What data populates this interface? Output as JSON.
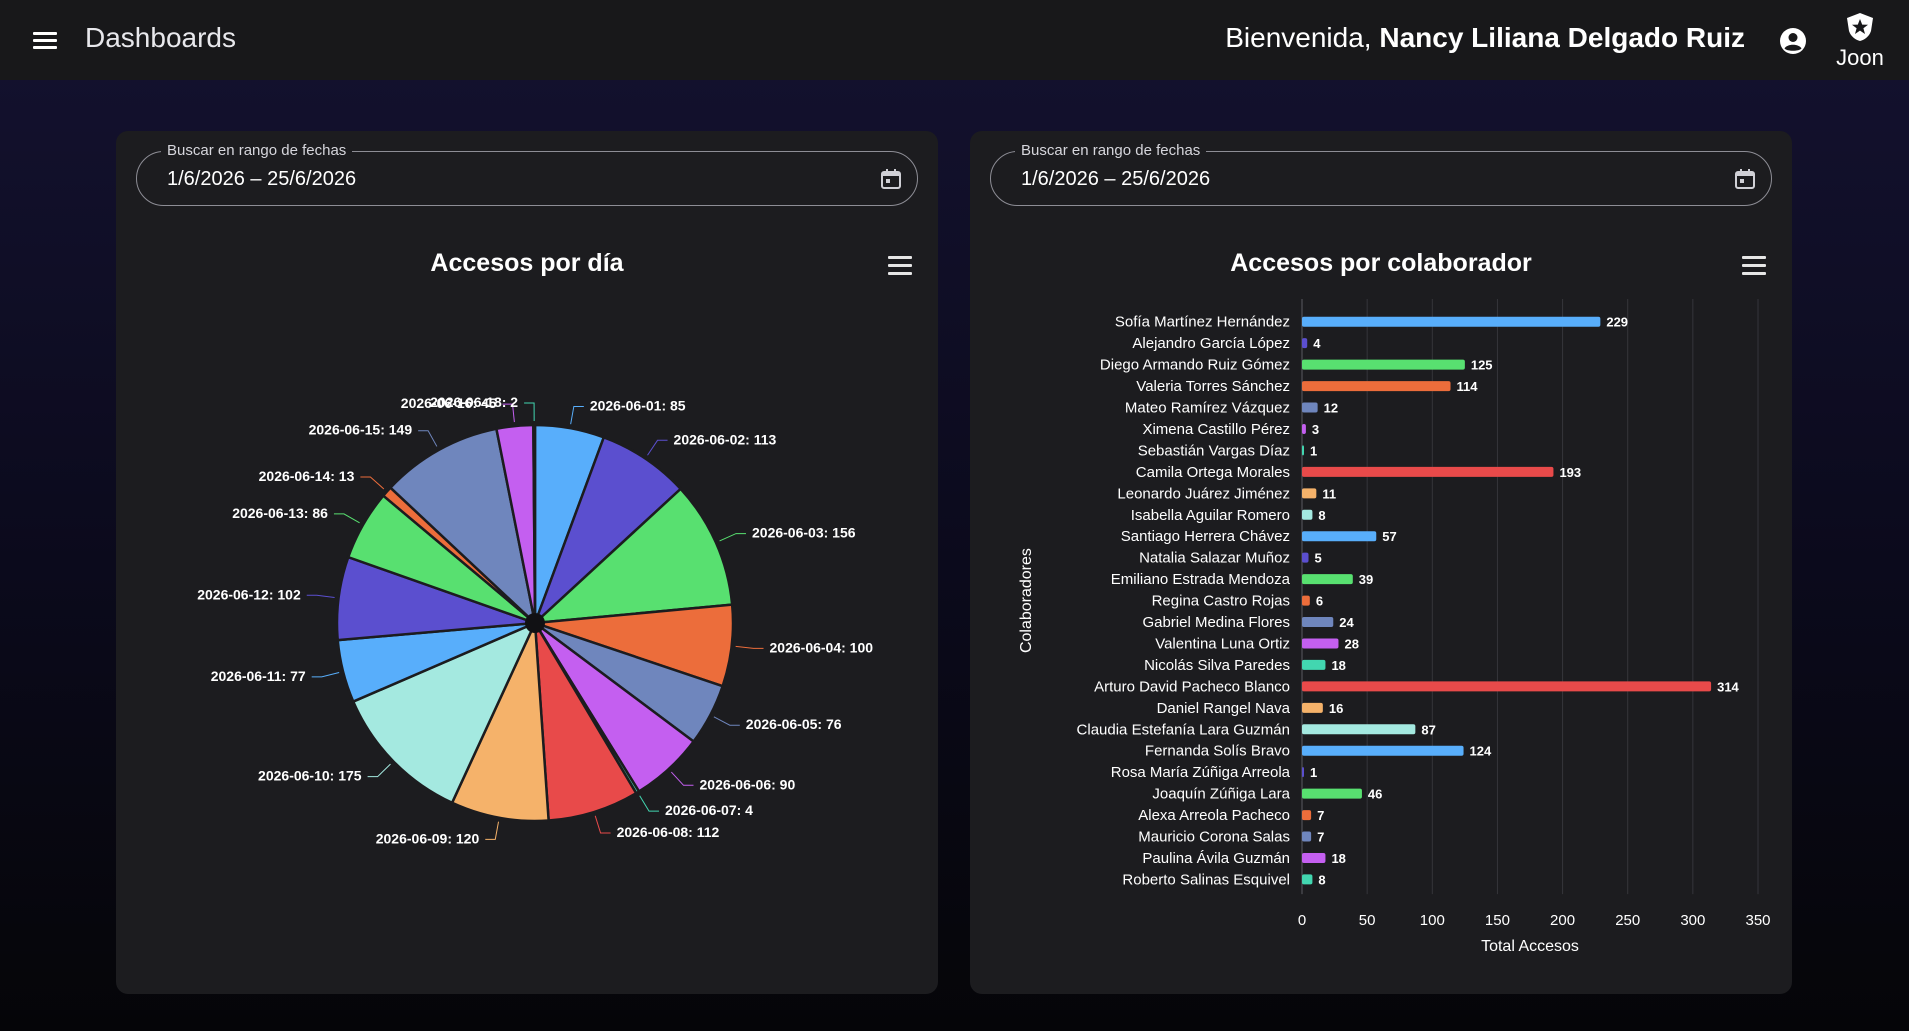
{
  "header": {
    "page_title": "Dashboards",
    "welcome_prefix": "Bienvenida,",
    "user_name": "Nancy Liliana Delgado Ruiz",
    "logo_text": "Joon"
  },
  "left_panel": {
    "date_label": "Buscar en rango de fechas",
    "date_value": "1/6/2026  – 25/6/2026",
    "title": "Accesos por día"
  },
  "right_panel": {
    "date_label": "Buscar en rango de fechas",
    "date_value": "1/6/2026  – 25/6/2026",
    "title": "Accesos por colaborador"
  },
  "chart_data": [
    {
      "type": "pie",
      "title": "Accesos por día",
      "slices": [
        {
          "label": "2026-06-01",
          "value": 85,
          "color": "#58aefb"
        },
        {
          "label": "2026-06-02",
          "value": 113,
          "color": "#5b4fcf"
        },
        {
          "label": "2026-06-03",
          "value": 156,
          "color": "#58e070"
        },
        {
          "label": "2026-06-04",
          "value": 100,
          "color": "#ec6d3b"
        },
        {
          "label": "2026-06-05",
          "value": 76,
          "color": "#6f86bd"
        },
        {
          "label": "2026-06-06",
          "value": 90,
          "color": "#c45ff0"
        },
        {
          "label": "2026-06-07",
          "value": 4,
          "color": "#42d6b0"
        },
        {
          "label": "2026-06-08",
          "value": 112,
          "color": "#e84a4a"
        },
        {
          "label": "2026-06-09",
          "value": 120,
          "color": "#f5b26a"
        },
        {
          "label": "2026-06-10",
          "value": 175,
          "color": "#a4e9e0"
        },
        {
          "label": "2026-06-11",
          "value": 77,
          "color": "#58aefb"
        },
        {
          "label": "2026-06-12",
          "value": 102,
          "color": "#5b4fcf"
        },
        {
          "label": "2026-06-13",
          "value": 86,
          "color": "#58e070"
        },
        {
          "label": "2026-06-14",
          "value": 13,
          "color": "#ec6d3b"
        },
        {
          "label": "2026-06-15",
          "value": 149,
          "color": "#6f86bd"
        },
        {
          "label": "2026-06-16",
          "value": 45,
          "color": "#c45ff0"
        },
        {
          "label": "2026-06-18",
          "value": 2,
          "color": "#42d6b0"
        }
      ]
    },
    {
      "type": "bar",
      "orientation": "horizontal",
      "title": "Accesos por colaborador",
      "xlabel": "Total Accesos",
      "ylabel": "Colaboradores",
      "xlim": [
        0,
        350
      ],
      "xticks": [
        0,
        50,
        100,
        150,
        200,
        250,
        300,
        350
      ],
      "grid": true,
      "categories": [
        "Sofía Martínez Hernández",
        "Alejandro García López",
        "Diego Armando Ruiz Gómez",
        "Valeria Torres Sánchez",
        "Mateo Ramírez Vázquez",
        "Ximena Castillo Pérez",
        "Sebastián Vargas Díaz",
        "Camila Ortega Morales",
        "Leonardo Juárez Jiménez",
        "Isabella Aguilar Romero",
        "Santiago Herrera Chávez",
        "Natalia Salazar Muñoz",
        "Emiliano Estrada Mendoza",
        "Regina Castro Rojas",
        "Gabriel Medina Flores",
        "Valentina Luna Ortiz",
        "Nicolás Silva Paredes",
        "Arturo David Pacheco Blanco",
        "Daniel Rangel Nava",
        "Claudia Estefanía Lara Guzmán",
        "Fernanda Solís Bravo",
        "Rosa María Zúñiga Arreola",
        "Joaquín Zúñiga Lara",
        "Alexa Arreola Pacheco",
        "Mauricio Corona Salas",
        "Paulina Ávila Guzmán",
        "Roberto Salinas Esquivel"
      ],
      "values": [
        229,
        4,
        125,
        114,
        12,
        3,
        1,
        193,
        11,
        8,
        57,
        5,
        39,
        6,
        24,
        28,
        18,
        314,
        16,
        87,
        124,
        1,
        46,
        7,
        7,
        18,
        8
      ],
      "colors": [
        "#58aefb",
        "#5b4fcf",
        "#58e070",
        "#ec6d3b",
        "#6f86bd",
        "#c45ff0",
        "#42d6b0",
        "#e84a4a",
        "#f5b26a",
        "#a4e9e0"
      ]
    }
  ]
}
